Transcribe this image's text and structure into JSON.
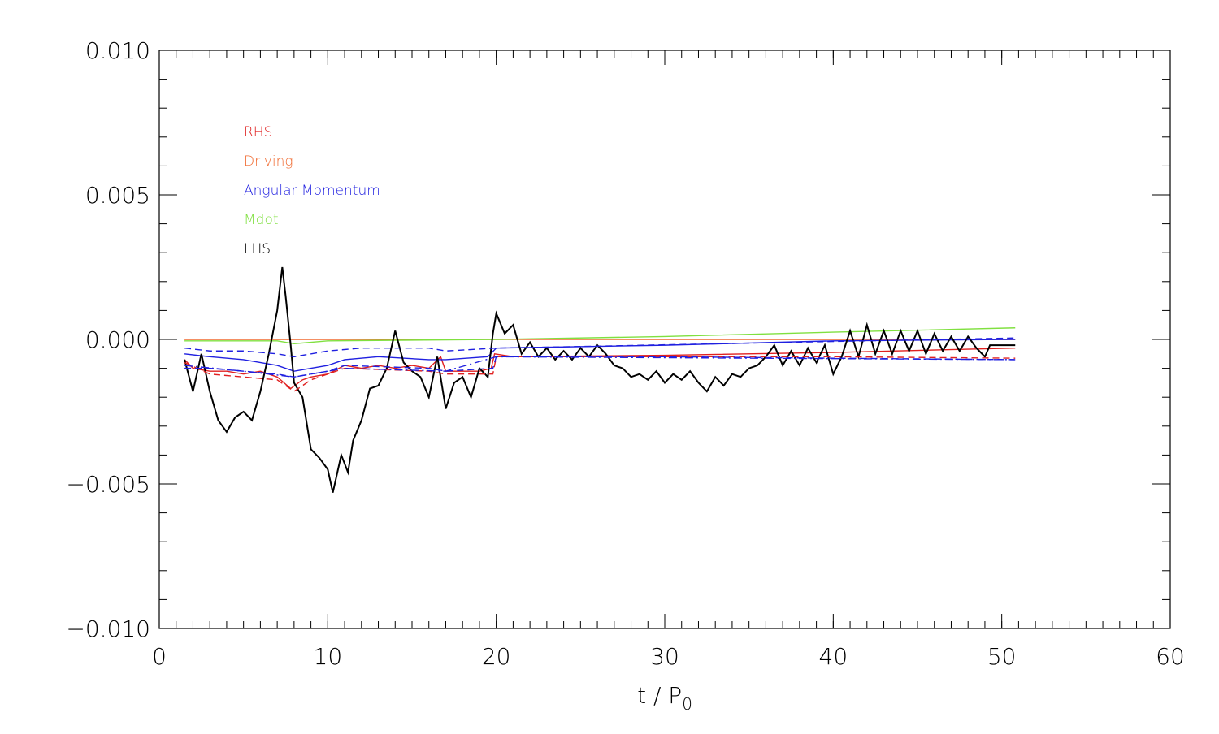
{
  "chart_data": {
    "type": "line",
    "xlabel": "t / P",
    "xlabel_subscript": "0",
    "xlim": [
      0,
      60
    ],
    "xticks": [
      0,
      10,
      20,
      30,
      40,
      50,
      60
    ],
    "xminorticks": [
      0,
      1,
      2,
      3,
      4,
      5,
      6,
      7,
      8,
      9,
      10,
      11,
      12,
      13,
      14,
      15,
      16,
      17,
      18,
      19,
      20,
      21,
      22,
      23,
      24,
      25,
      26,
      27,
      28,
      29,
      30,
      31,
      32,
      33,
      34,
      35,
      36,
      37,
      38,
      39,
      40,
      41,
      42,
      43,
      44,
      45,
      46,
      47,
      48,
      49,
      50,
      51,
      52,
      53,
      54,
      55,
      56,
      57,
      58,
      59,
      60
    ],
    "ylim": [
      -0.01,
      0.01
    ],
    "yticks": [
      {
        "value": -0.01,
        "label": "−0.010"
      },
      {
        "value": -0.005,
        "label": "−0.005"
      },
      {
        "value": 0,
        "label": "0.000"
      },
      {
        "value": 0.005,
        "label": "0.005"
      },
      {
        "value": 0.01,
        "label": "0.010"
      }
    ],
    "yminorticks": [
      -0.01,
      -0.009,
      -0.008,
      -0.007,
      -0.006,
      -0.005,
      -0.004,
      -0.003,
      -0.002,
      -0.001,
      0,
      0.001,
      0.002,
      0.003,
      0.004,
      0.005,
      0.006,
      0.007,
      0.008,
      0.009,
      0.01
    ],
    "legend": "upper left",
    "series": [
      {
        "name": "RHS",
        "color": "#e02020",
        "linestyle": "solid",
        "x": [
          1.5,
          2,
          3,
          4,
          5,
          6,
          7,
          7.8,
          8.5,
          9,
          10,
          11,
          12,
          13,
          14,
          15,
          16,
          16.7,
          17,
          18,
          19,
          19.7,
          19.9,
          21,
          30,
          40,
          50.8
        ],
        "values": [
          -0.0007,
          -0.001,
          -0.0011,
          -0.0011,
          -0.0012,
          -0.0011,
          -0.0013,
          -0.0017,
          -0.0014,
          -0.0013,
          -0.0012,
          -0.0009,
          -0.001,
          -0.0009,
          -0.001,
          -0.0009,
          -0.001,
          -0.0006,
          -0.0011,
          -0.0011,
          -0.0011,
          -0.001,
          -0.0005,
          -0.0006,
          -0.00055,
          -0.00045,
          -0.0003
        ]
      },
      {
        "name": "Driving",
        "color": "#f06a30",
        "linestyle": "solid",
        "x": [
          1.5,
          50.8
        ],
        "values": [
          0,
          0
        ]
      },
      {
        "name": "Angular Momentum",
        "color": "#2020e0",
        "linestyle": "solid",
        "x": [
          1.5,
          3,
          5,
          7,
          8,
          9,
          10,
          11,
          13,
          16,
          17,
          19.5,
          20,
          30,
          40,
          50.8
        ],
        "values": [
          -0.0005,
          -0.0006,
          -0.0007,
          -0.0009,
          -0.0011,
          -0.001,
          -0.0009,
          -0.0007,
          -0.0006,
          -0.0007,
          -0.0007,
          -0.0006,
          -0.0003,
          -0.0002,
          -5e-05,
          0
        ]
      },
      {
        "name": "Mdot",
        "color": "#80e040",
        "linestyle": "solid",
        "x": [
          1.5,
          7,
          8,
          9,
          10,
          20,
          30,
          40,
          50.8
        ],
        "values": [
          -5e-05,
          -5e-05,
          -0.00015,
          -0.0001,
          -5e-05,
          0,
          0.0001,
          0.00025,
          0.0004
        ]
      },
      {
        "name": "LHS",
        "color": "#000000",
        "linestyle": "solid",
        "x": [
          1.5,
          2,
          2.5,
          3,
          3.5,
          4,
          4.5,
          5,
          5.5,
          6,
          6.5,
          7,
          7.3,
          7.5,
          7.8,
          8,
          8.5,
          9,
          9.5,
          10,
          10.3,
          10.8,
          11.2,
          11.5,
          12,
          12.5,
          13,
          13.5,
          14,
          14.5,
          15,
          15.5,
          16,
          16.5,
          17,
          17.5,
          18,
          18.5,
          19,
          19.5,
          19.8,
          20,
          20.5,
          21,
          21.5,
          22,
          22.5,
          23,
          23.5,
          24,
          24.5,
          25,
          25.5,
          26,
          26.5,
          27,
          27.5,
          28,
          28.5,
          29,
          29.5,
          30,
          30.5,
          31,
          31.5,
          32,
          32.5,
          33,
          33.5,
          34,
          34.5,
          35,
          35.5,
          36,
          36.5,
          37,
          37.5,
          38,
          38.5,
          39,
          39.5,
          40,
          40.5,
          41,
          41.5,
          42,
          42.5,
          43,
          43.5,
          44,
          44.5,
          45,
          45.5,
          46,
          46.5,
          47,
          47.5,
          48,
          48.5,
          49,
          49.3,
          50.8
        ],
        "values": [
          -0.0007,
          -0.0018,
          -0.0005,
          -0.0018,
          -0.0028,
          -0.0032,
          -0.0027,
          -0.0025,
          -0.0028,
          -0.0018,
          -0.0005,
          0.001,
          0.0025,
          0.0015,
          -0.0002,
          -0.0015,
          -0.002,
          -0.0038,
          -0.0041,
          -0.0045,
          -0.0053,
          -0.004,
          -0.0046,
          -0.0035,
          -0.0028,
          -0.0017,
          -0.0016,
          -0.001,
          0.0003,
          -0.0008,
          -0.0011,
          -0.0013,
          -0.002,
          -0.0006,
          -0.0024,
          -0.0015,
          -0.0013,
          -0.002,
          -0.001,
          -0.0013,
          0.0002,
          0.0009,
          0.0002,
          0.0005,
          -0.0005,
          -0.0001,
          -0.0006,
          -0.0003,
          -0.0007,
          -0.0004,
          -0.0007,
          -0.0003,
          -0.0006,
          -0.0002,
          -0.0005,
          -0.0009,
          -0.001,
          -0.0013,
          -0.0012,
          -0.0014,
          -0.0011,
          -0.0015,
          -0.0012,
          -0.0014,
          -0.0011,
          -0.0015,
          -0.0018,
          -0.0013,
          -0.0016,
          -0.0012,
          -0.0013,
          -0.001,
          -0.0009,
          -0.0006,
          -0.0002,
          -0.0009,
          -0.0004,
          -0.0009,
          -0.0003,
          -0.0008,
          -0.0002,
          -0.0012,
          -0.0006,
          0.0003,
          -0.0006,
          0.0005,
          -0.0005,
          0.0003,
          -0.0005,
          0.0003,
          -0.0004,
          0.0003,
          -0.0005,
          0.0002,
          -0.0004,
          0.0001,
          -0.0004,
          0.0001,
          -0.0003,
          -0.0006,
          -0.0002,
          -0.0002
        ]
      },
      {
        "color": "#e02020",
        "linestyle": "dashed",
        "x": [
          1.5,
          3,
          5,
          7,
          8,
          9,
          11,
          16,
          17,
          19.8,
          20,
          30,
          40,
          50.8
        ],
        "values": [
          -0.0008,
          -0.0012,
          -0.0013,
          -0.0014,
          -0.0018,
          -0.0014,
          -0.001,
          -0.0011,
          -0.0012,
          -0.0012,
          -0.0006,
          -0.0006,
          -0.0006,
          -0.00065
        ]
      },
      {
        "color": "#2020e0",
        "linestyle": "dashed",
        "x": [
          1.5,
          3,
          5,
          7,
          8,
          10,
          12,
          16,
          17,
          20,
          50.8
        ],
        "values": [
          -0.0003,
          -0.0004,
          -0.0004,
          -0.0005,
          -0.0006,
          -0.0004,
          -0.0003,
          -0.0003,
          -0.0004,
          -0.0003,
          5e-05
        ]
      },
      {
        "color": "#2020e0",
        "linestyle": "dashed",
        "x": [
          1.5,
          3,
          5,
          7,
          8,
          10,
          11,
          16,
          17,
          19.8,
          20,
          30,
          40,
          50.8
        ],
        "values": [
          -0.001,
          -0.001,
          -0.0011,
          -0.0012,
          -0.0013,
          -0.0011,
          -0.0009,
          -0.001,
          -0.0011,
          -0.001,
          -0.0006,
          -0.0006,
          -0.00065,
          -0.0007
        ]
      },
      {
        "color": "#2020e0",
        "linestyle": "dashdot",
        "x": [
          1.5,
          5,
          8,
          11,
          17,
          20,
          50.8
        ],
        "values": [
          -0.0009,
          -0.0011,
          -0.0013,
          -0.001,
          -0.0011,
          -0.0006,
          -0.0007
        ]
      }
    ]
  }
}
